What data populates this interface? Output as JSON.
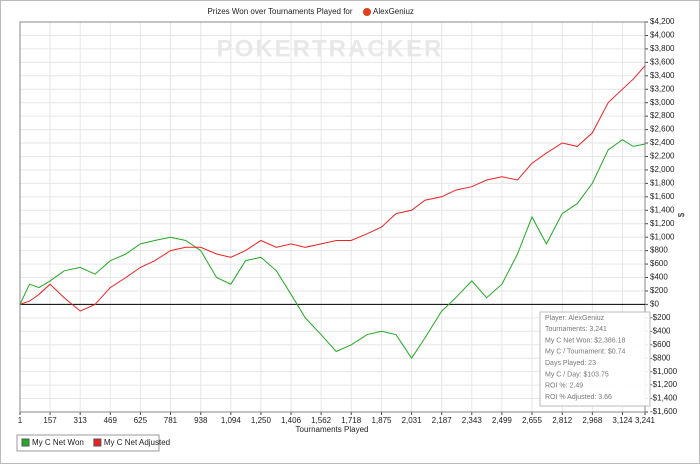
{
  "chart_data": {
    "type": "line",
    "title": "Prizes Won over Tournaments Played for",
    "player": "AlexGeniuz",
    "watermark": "POKERTRACKER",
    "x_label": "Tournaments Played",
    "y_label": "$",
    "grid": true,
    "x": [
      1,
      50,
      100,
      157,
      230,
      313,
      390,
      469,
      550,
      625,
      700,
      781,
      860,
      938,
      1020,
      1094,
      1170,
      1250,
      1330,
      1406,
      1480,
      1562,
      1640,
      1718,
      1800,
      1875,
      1950,
      2031,
      2100,
      2187,
      2260,
      2343,
      2420,
      2499,
      2580,
      2655,
      2730,
      2812,
      2890,
      2968,
      3050,
      3124,
      3180,
      3241
    ],
    "series": [
      {
        "name": "My C Net Won",
        "color": "#22aa22",
        "values": [
          0,
          300,
          250,
          350,
          500,
          550,
          450,
          650,
          750,
          900,
          950,
          1000,
          950,
          800,
          400,
          300,
          650,
          700,
          500,
          150,
          -200,
          -450,
          -700,
          -600,
          -450,
          -400,
          -450,
          -800,
          -500,
          -100,
          100,
          350,
          100,
          300,
          750,
          1300,
          900,
          1350,
          1500,
          1800,
          2300,
          2450,
          2350,
          2386.18
        ]
      },
      {
        "name": "My C Net Adjusted",
        "color": "#ee2222",
        "values": [
          0,
          50,
          150,
          300,
          100,
          -100,
          0,
          250,
          400,
          550,
          650,
          800,
          850,
          850,
          750,
          700,
          800,
          950,
          850,
          900,
          850,
          900,
          950,
          950,
          1050,
          1150,
          1350,
          1400,
          1550,
          1600,
          1700,
          1750,
          1850,
          1900,
          1850,
          2100,
          2250,
          2400,
          2350,
          2550,
          3000,
          3200,
          3350,
          3550
        ]
      }
    ],
    "xlim": [
      1,
      3241
    ],
    "xticks": [
      1,
      157,
      313,
      469,
      625,
      781,
      938,
      {
        "value": 1094,
        "label": "1,094"
      },
      {
        "value": 1250,
        "label": "1,250"
      },
      {
        "value": 1406,
        "label": "1,406"
      },
      {
        "value": 1562,
        "label": "1,562"
      },
      {
        "value": 1718,
        "label": "1,718"
      },
      {
        "value": 1875,
        "label": "1,875"
      },
      {
        "value": 2031,
        "label": "2,031"
      },
      {
        "value": 2187,
        "label": "2,187"
      },
      {
        "value": 2343,
        "label": "2,343"
      },
      {
        "value": 2499,
        "label": "2,499"
      },
      {
        "value": 2655,
        "label": "2,655"
      },
      {
        "value": 2812,
        "label": "2,812"
      },
      {
        "value": 2968,
        "label": "2,968"
      },
      {
        "value": 3124,
        "label": "3,124"
      },
      {
        "value": 3241,
        "label": "3,241"
      }
    ],
    "ylim": [
      -1600,
      4200
    ],
    "yticks": [
      {
        "value": -1600,
        "label": "-$1,600"
      },
      {
        "value": -1400,
        "label": "-$1,400"
      },
      {
        "value": -1200,
        "label": "-$1,200"
      },
      {
        "value": -1000,
        "label": "-$1,000"
      },
      {
        "value": -800,
        "label": "-$800"
      },
      {
        "value": -600,
        "label": "-$600"
      },
      {
        "value": -400,
        "label": "-$400"
      },
      {
        "value": -200,
        "label": "-$200"
      },
      {
        "value": 0,
        "label": "$0"
      },
      {
        "value": 200,
        "label": "$200"
      },
      {
        "value": 400,
        "label": "$400"
      },
      {
        "value": 600,
        "label": "$600"
      },
      {
        "value": 800,
        "label": "$800"
      },
      {
        "value": 1000,
        "label": "$1,000"
      },
      {
        "value": 1200,
        "label": "$1,200"
      },
      {
        "value": 1400,
        "label": "$1,400"
      },
      {
        "value": 1600,
        "label": "$1,600"
      },
      {
        "value": 1800,
        "label": "$1,800"
      },
      {
        "value": 2000,
        "label": "$2,000"
      },
      {
        "value": 2200,
        "label": "$2,200"
      },
      {
        "value": 2400,
        "label": "$2,400"
      },
      {
        "value": 2600,
        "label": "$2,600"
      },
      {
        "value": 2800,
        "label": "$2,800"
      },
      {
        "value": 3000,
        "label": "$3,000"
      },
      {
        "value": 3200,
        "label": "$3,200"
      },
      {
        "value": 3400,
        "label": "$3,400"
      },
      {
        "value": 3600,
        "label": "$3,600"
      },
      {
        "value": 3800,
        "label": "$3,800"
      },
      {
        "value": 4000,
        "label": "$4,000"
      },
      {
        "value": 4200,
        "label": "$4,200"
      }
    ],
    "info_box": [
      "Player: AlexGeniuz",
      "Tournaments: 3,241",
      "My C Net Won: $2,386.18",
      "My C / Tournament: $0.74",
      "Days Played: 23",
      "My C / Day: $103.75",
      "ROI %: 2.49",
      "ROI % Adjusted: 3.66"
    ]
  }
}
